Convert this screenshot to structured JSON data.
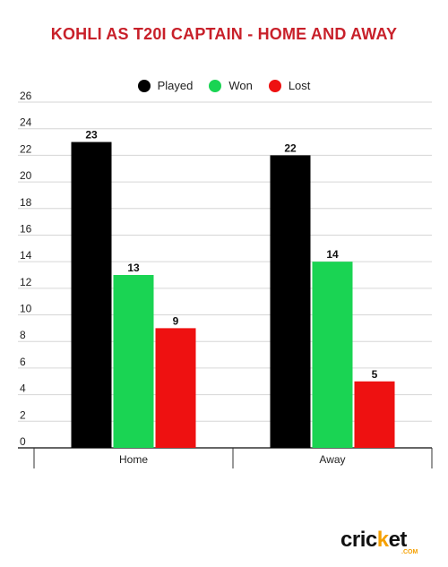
{
  "colors": {
    "title": "#c8202a",
    "played": "#000000",
    "won": "#1ad453",
    "lost": "#ee1111",
    "grid": "#d6d6d6",
    "axis": "#333333",
    "logo_accent": "#f5a000"
  },
  "logo": {
    "prefix": "cric",
    "dot": "k",
    "suffix": "et",
    "sub": ".COM"
  },
  "chart_data": {
    "type": "bar",
    "title": "KOHLI AS T20I CAPTAIN - HOME AND AWAY",
    "categories": [
      "Home",
      "Away"
    ],
    "series": [
      {
        "name": "Played",
        "values": [
          23,
          22
        ],
        "color_key": "played"
      },
      {
        "name": "Won",
        "values": [
          13,
          14
        ],
        "color_key": "won"
      },
      {
        "name": "Lost",
        "values": [
          9,
          5
        ],
        "color_key": "lost"
      }
    ],
    "ylim": [
      0,
      26
    ],
    "yticks": [
      0,
      2,
      4,
      6,
      8,
      10,
      12,
      14,
      16,
      18,
      20,
      22,
      24,
      26
    ],
    "grid": true,
    "legend_position": "top-center",
    "data_labels": true
  }
}
